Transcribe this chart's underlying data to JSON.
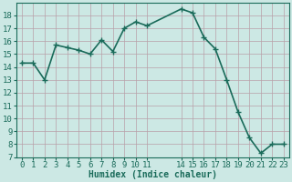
{
  "x": [
    0,
    1,
    2,
    3,
    4,
    5,
    6,
    7,
    8,
    9,
    10,
    11,
    14,
    15,
    16,
    17,
    18,
    19,
    20,
    21,
    22,
    23
  ],
  "y": [
    14.3,
    14.3,
    13.0,
    15.7,
    15.5,
    15.3,
    15.0,
    16.1,
    15.2,
    17.0,
    17.5,
    17.2,
    18.5,
    18.2,
    16.3,
    15.4,
    13.0,
    10.5,
    8.5,
    7.3,
    8.0,
    8.0
  ],
  "line_color": "#1a6b5a",
  "marker_color": "#1a6b5a",
  "bg_color": "#cce8e4",
  "grid_color": "#b8a0a8",
  "xlabel": "Humidex (Indice chaleur)",
  "xlim": [
    -0.5,
    23.5
  ],
  "ylim": [
    7,
    19
  ],
  "yticks": [
    7,
    8,
    9,
    10,
    11,
    12,
    13,
    14,
    15,
    16,
    17,
    18
  ],
  "font_color": "#1a6b5a",
  "font_size": 6.5,
  "xlabel_font_size": 7.0,
  "line_width": 1.2,
  "marker_size": 2.5,
  "all_xticks": [
    0,
    1,
    2,
    3,
    4,
    5,
    6,
    7,
    8,
    9,
    10,
    11,
    12,
    13,
    14,
    15,
    16,
    17,
    18,
    19,
    20,
    21,
    22,
    23
  ],
  "labeled_xticks": [
    0,
    1,
    2,
    3,
    4,
    5,
    6,
    7,
    8,
    9,
    10,
    11,
    14,
    15,
    16,
    17,
    18,
    19,
    20,
    21,
    22,
    23
  ],
  "xtick_labels": [
    "0",
    "1",
    "2",
    "3",
    "4",
    "5",
    "6",
    "7",
    "8",
    "9",
    "10",
    "11",
    "14",
    "15",
    "16",
    "17",
    "18",
    "19",
    "20",
    "21",
    "22",
    "23"
  ]
}
